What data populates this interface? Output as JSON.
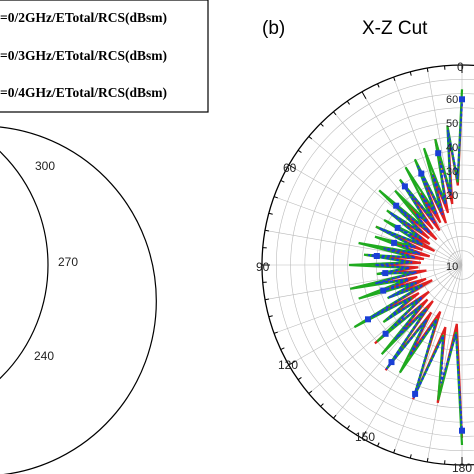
{
  "chart_data": [
    {
      "type": "polar",
      "panel_label": "",
      "title": "",
      "angle_tick_labels": [
        "300",
        "270",
        "240"
      ],
      "legend": {
        "placement": "top",
        "entries": [
          {
            "label": "=0/2GHz/ETotal/RCS(dBsm)"
          },
          {
            "label": "=0/3GHz/ETotal/RCS(dBsm)"
          },
          {
            "label": "=0/4GHz/ETotal/RCS(dBsm)"
          }
        ]
      }
    },
    {
      "type": "polar",
      "panel_label": "(b)",
      "title": "X-Z Cut",
      "angle_tick_labels": [
        "0",
        "60",
        "90",
        "120",
        "150",
        "180"
      ],
      "radial_tick_labels": [
        "60",
        "50",
        "40",
        "30",
        "20",
        "10"
      ],
      "radial_range": [
        0,
        70
      ],
      "grid": true,
      "series": [
        {
          "color": "#e02020",
          "r": [
            62,
            48,
            42,
            35,
            37,
            32,
            36,
            28,
            33,
            30,
            24,
            33,
            26,
            30,
            32,
            34,
            28,
            36,
            30,
            26,
            40,
            33,
            38,
            36,
            44,
            40,
            50,
            46,
            62
          ]
        },
        {
          "color": "#1faa1f",
          "r": [
            60,
            52,
            45,
            40,
            42,
            38,
            40,
            35,
            36,
            34,
            30,
            36,
            32,
            34,
            36,
            38,
            33,
            40,
            35,
            30,
            42,
            37,
            40,
            39,
            46,
            42,
            52,
            48,
            60
          ]
        },
        {
          "color": "#1a3fd6",
          "r": [
            58,
            46,
            40,
            33,
            35,
            30,
            34,
            27,
            31,
            28,
            26,
            30,
            25,
            28,
            30,
            32,
            27,
            34,
            29,
            25,
            38,
            31,
            36,
            35,
            42,
            38,
            48,
            45,
            58
          ]
        }
      ],
      "theta_deg": [
        0,
        6,
        12,
        18,
        24,
        30,
        36,
        42,
        48,
        54,
        60,
        66,
        72,
        78,
        84,
        90,
        96,
        102,
        108,
        114,
        120,
        126,
        132,
        138,
        144,
        150,
        160,
        170,
        180
      ]
    }
  ]
}
